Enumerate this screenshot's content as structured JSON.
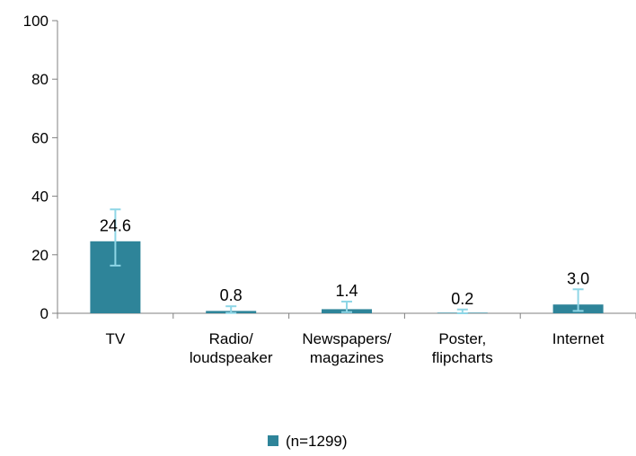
{
  "chart_data": {
    "type": "bar",
    "categories": [
      [
        "TV"
      ],
      [
        "Radio/",
        "loudspeaker"
      ],
      [
        "Newspapers/",
        "magazines"
      ],
      [
        "Poster,",
        "flipcharts"
      ],
      [
        "Internet"
      ]
    ],
    "values": [
      24.6,
      0.8,
      1.4,
      0.2,
      3.0
    ],
    "value_labels": [
      "24.6",
      "0.8",
      "1.4",
      "0.2",
      "3.0"
    ],
    "error_bars": [
      [
        16.3,
        35.5
      ],
      [
        0.1,
        2.4
      ],
      [
        0.4,
        4.0
      ],
      [
        0.0,
        1.3
      ],
      [
        0.8,
        8.2
      ]
    ],
    "ylim": [
      0,
      100
    ],
    "yticks": [
      0,
      20,
      40,
      60,
      80,
      100
    ],
    "legend": {
      "label": "(n=1299)",
      "position": "bottom"
    },
    "series_color": "#2e8499",
    "error_color": "#8ed6e6",
    "axis_color": "#808080",
    "grid": false
  }
}
